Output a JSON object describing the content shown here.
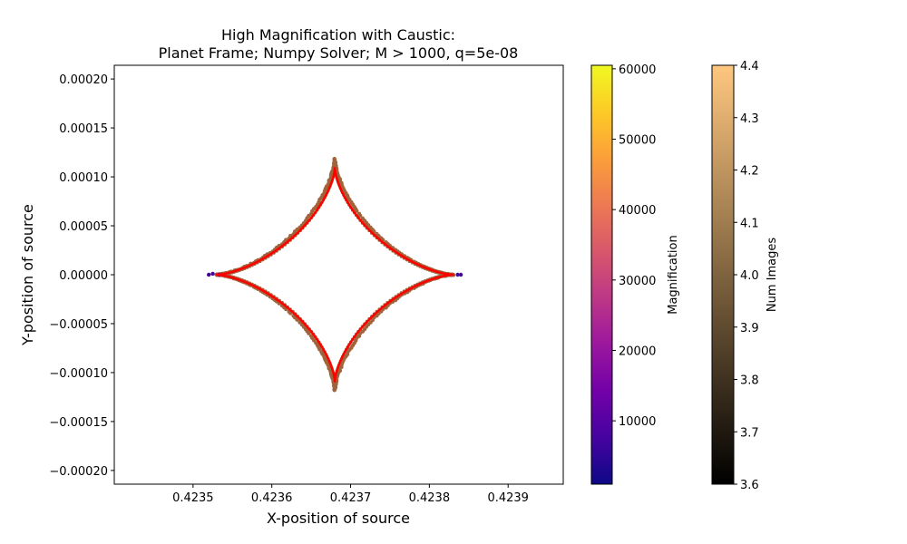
{
  "chart_data": {
    "type": "scatter",
    "title_line1": "High Magnification with Caustic:",
    "title_line2": "Planet Frame; Numpy Solver; M > 1000, q=5e-08",
    "xlabel": "X-position of source",
    "ylabel": "Y-position of source",
    "xlim": [
      0.4234,
      0.42397
    ],
    "ylim": [
      -0.000214,
      0.000214
    ],
    "xticks": [
      {
        "value": 0.4235,
        "label": "0.4235"
      },
      {
        "value": 0.4236,
        "label": "0.4236"
      },
      {
        "value": 0.4237,
        "label": "0.4237"
      },
      {
        "value": 0.4238,
        "label": "0.4238"
      },
      {
        "value": 0.4239,
        "label": "0.4239"
      }
    ],
    "yticks": [
      {
        "value": 0.0002,
        "label": "0.00020"
      },
      {
        "value": 0.00015,
        "label": "0.00015"
      },
      {
        "value": 0.0001,
        "label": "0.00010"
      },
      {
        "value": 5e-05,
        "label": "0.00005"
      },
      {
        "value": 0.0,
        "label": "0.00000"
      },
      {
        "value": -5e-05,
        "label": "−0.00005"
      },
      {
        "value": -0.0001,
        "label": "−0.00010"
      },
      {
        "value": -0.00015,
        "label": "−0.00015"
      },
      {
        "value": -0.0002,
        "label": "−0.00020"
      }
    ],
    "grid": false,
    "caustic": {
      "shape": "astroid",
      "center": [
        0.42368,
        0.0
      ],
      "left_cusp_x": 0.42353,
      "right_cusp_x": 0.42383,
      "half_height": 0.000109,
      "color": "#ff0000"
    },
    "num_images_points": {
      "color": "#a0643c",
      "description_value": 4.0,
      "center": [
        0.42368,
        0.0
      ],
      "left_cusp_x": 0.42353,
      "right_cusp_x": 0.42383,
      "half_height": 0.000118
    },
    "magnification_points": [
      {
        "x": 0.42352,
        "y": 0.0,
        "m": 5000,
        "color": "#3a049a"
      },
      {
        "x": 0.423525,
        "y": 1e-06,
        "m": 8000,
        "color": "#4c02a1"
      },
      {
        "x": 0.423533,
        "y": 0.0,
        "m": 12000,
        "color": "#6a00a8"
      },
      {
        "x": 0.423836,
        "y": 0.0,
        "m": 8000,
        "color": "#4c02a1"
      },
      {
        "x": 0.42384,
        "y": 0.0,
        "m": 5000,
        "color": "#3a049a"
      }
    ],
    "colorbars": [
      {
        "label": "Magnification",
        "colormap": "plasma",
        "range": [
          1000,
          60500
        ],
        "ticks": [
          {
            "value": 10000,
            "label": "10000"
          },
          {
            "value": 20000,
            "label": "20000"
          },
          {
            "value": 30000,
            "label": "30000"
          },
          {
            "value": 40000,
            "label": "40000"
          },
          {
            "value": 50000,
            "label": "50000"
          },
          {
            "value": 60000,
            "label": "60000"
          }
        ],
        "colors": [
          "#0d0887",
          "#46039f",
          "#7201a8",
          "#9c179e",
          "#bd3786",
          "#d8576b",
          "#ed7953",
          "#fb9f3a",
          "#fdca26",
          "#f0f921"
        ]
      },
      {
        "label": "Num Images",
        "colormap": "copper",
        "range": [
          3.6,
          4.4
        ],
        "ticks": [
          {
            "value": 3.6,
            "label": "3.6"
          },
          {
            "value": 3.7,
            "label": "3.7"
          },
          {
            "value": 3.8,
            "label": "3.8"
          },
          {
            "value": 3.9,
            "label": "3.9"
          },
          {
            "value": 4.0,
            "label": "4.0"
          },
          {
            "value": 4.1,
            "label": "4.1"
          },
          {
            "value": 4.2,
            "label": "4.2"
          },
          {
            "value": 4.3,
            "label": "4.3"
          },
          {
            "value": 4.4,
            "label": "4.4"
          }
        ],
        "colors": [
          "#000000",
          "#ffc77f"
        ]
      }
    ]
  }
}
